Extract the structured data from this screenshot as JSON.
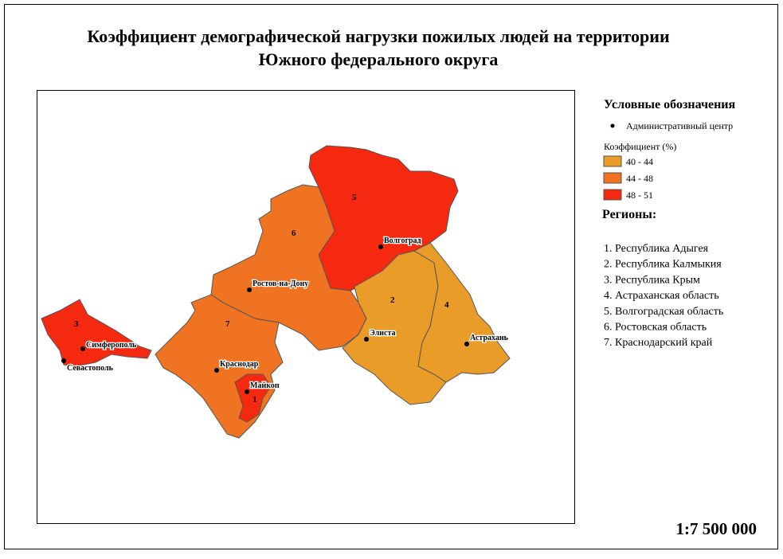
{
  "title_lines": [
    "Коэффициент демографической нагрузки пожилых людей на территории",
    "Южного федерального округа"
  ],
  "legend": {
    "heading": "Условные обозначения",
    "admin_center": "Административный центр",
    "coef_label": "Коэффициент (%)",
    "classes": [
      {
        "label": "40 - 44",
        "color": "#e99c28"
      },
      {
        "label": "44 - 48",
        "color": "#ef7320"
      },
      {
        "label": "48 - 51",
        "color": "#f5290f"
      }
    ],
    "regions_heading": "Регионы:",
    "regions": [
      "1. Республика Адыгея",
      "2. Республика Калмыкия",
      "3. Республика Крым",
      "4. Астраханская область",
      "5. Волгоградская область",
      "6. Ростовская область",
      "7. Краснодарский край"
    ]
  },
  "map": {
    "regions": [
      {
        "label": "1",
        "color": "#f5290f"
      },
      {
        "label": "2",
        "color": "#e99c28"
      },
      {
        "label": "3",
        "color": "#f5290f"
      },
      {
        "label": "4",
        "color": "#e99c28"
      },
      {
        "label": "5",
        "color": "#f5290f"
      },
      {
        "label": "6",
        "color": "#ef7320"
      },
      {
        "label": "7",
        "color": "#ef7320"
      }
    ],
    "cities": [
      "Волгоград",
      "Ростов-на-Дону",
      "Элиста",
      "Астрахань",
      "Симферополь",
      "Севастополь",
      "Краснодар",
      "Майкоп"
    ]
  },
  "scale": "1:7 500 000"
}
